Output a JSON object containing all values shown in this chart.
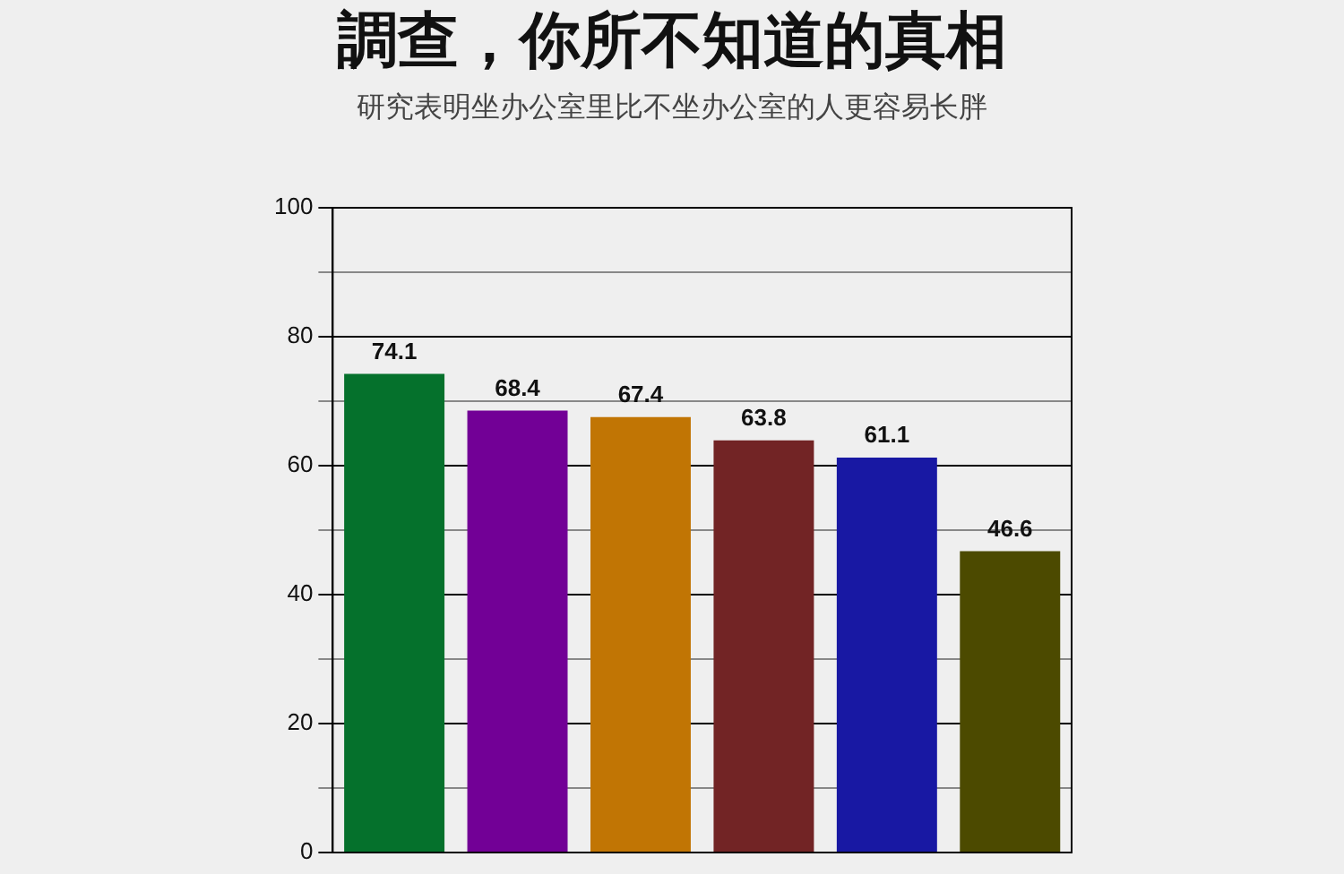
{
  "chart_data": {
    "type": "bar",
    "title": "調查，你所不知道的真相",
    "subtitle": "研究表明坐办公室里比不坐办公室的人更容易长胖",
    "categories": [
      null,
      null,
      null,
      null,
      null,
      null
    ],
    "values": [
      74.1,
      68.4,
      67.4,
      63.8,
      61.1,
      46.6
    ],
    "colors": [
      "#05712c",
      "#720096",
      "#c17504",
      "#722425",
      "#1818a3",
      "#4c4a00"
    ],
    "ylim": [
      0,
      100
    ],
    "yticks": [
      0,
      {
        "value": 10,
        "label": null
      },
      20,
      {
        "value": 30,
        "label": null
      },
      40,
      {
        "value": 50,
        "label": null
      },
      60,
      {
        "value": 70,
        "label": null
      },
      80,
      {
        "value": 90,
        "label": null
      },
      100
    ],
    "grid": "y",
    "data_labels": true,
    "legend": false
  }
}
